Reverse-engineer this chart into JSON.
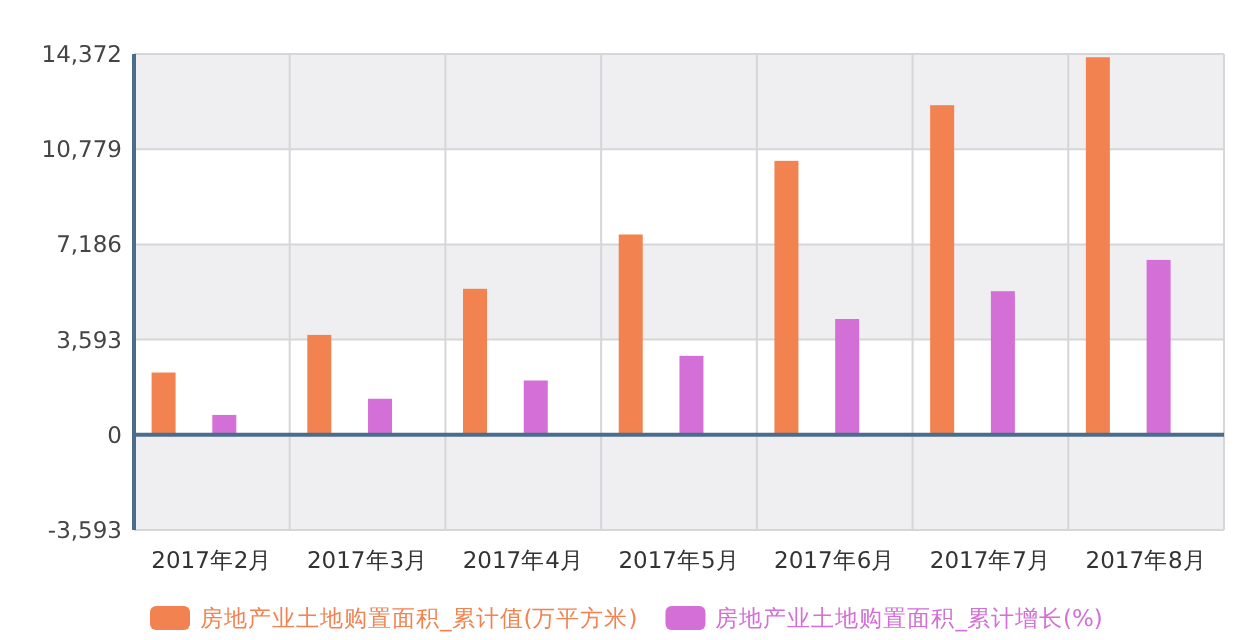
{
  "chart_data": {
    "type": "bar",
    "categories": [
      "2017年2月",
      "2017年3月",
      "2017年4月",
      "2017年5月",
      "2017年6月",
      "2017年7月",
      "2017年8月"
    ],
    "series": [
      {
        "name": "房地产业土地购置面积_累计值(万平方米)",
        "color": "#f28350",
        "values": [
          2350,
          3770,
          5510,
          7560,
          10340,
          12440,
          14250
        ]
      },
      {
        "name": "房地产业土地购置面积_累计增长(%)",
        "color": "#d36fd6",
        "values": [
          750,
          1360,
          2050,
          2980,
          4370,
          5420,
          6600
        ]
      }
    ],
    "ylim": [
      -3593,
      14372
    ],
    "yticks": [
      {
        "value": -3593,
        "label": "-3,593"
      },
      0,
      {
        "value": 3593,
        "label": "3,593"
      },
      {
        "value": 7186,
        "label": "7,186"
      },
      {
        "value": 10779,
        "label": "10,779"
      },
      {
        "value": 14372,
        "label": "14,372"
      }
    ],
    "ref_lines": [
      {
        "axis": "y",
        "value": 0,
        "color": "#4a6d8c"
      }
    ],
    "grid": true,
    "legend": "bottom"
  }
}
